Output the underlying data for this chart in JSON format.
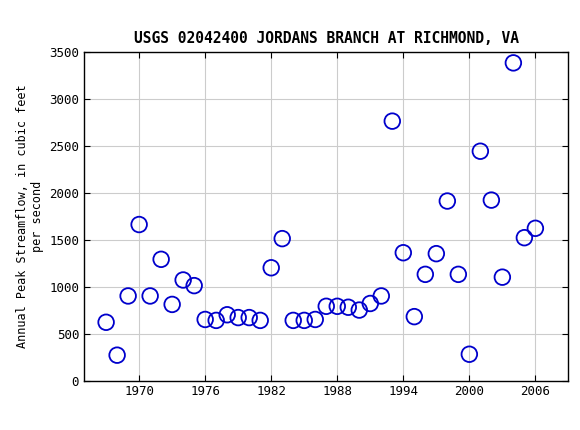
{
  "title": "USGS 02042400 JORDANS BRANCH AT RICHMOND, VA",
  "ylabel": "Annual Peak Streamflow, in cubic feet\nper second",
  "years": [
    1967,
    1968,
    1969,
    1970,
    1971,
    1972,
    1973,
    1974,
    1975,
    1976,
    1977,
    1978,
    1979,
    1980,
    1981,
    1982,
    1983,
    1984,
    1985,
    1986,
    1987,
    1988,
    1989,
    1990,
    1991,
    1992,
    1993,
    1994,
    1995,
    1996,
    1997,
    1998,
    1999,
    2000,
    2001,
    2002,
    2003,
    2004,
    2005,
    2006
  ],
  "values": [
    620,
    270,
    900,
    1660,
    900,
    1290,
    810,
    1070,
    1010,
    650,
    640,
    700,
    670,
    670,
    640,
    1200,
    1510,
    640,
    640,
    650,
    790,
    790,
    780,
    750,
    820,
    900,
    2760,
    1360,
    680,
    1130,
    1350,
    1910,
    1130,
    280,
    2440,
    1920,
    1100,
    3380,
    1520,
    1620
  ],
  "xlim": [
    1965,
    2009
  ],
  "ylim": [
    0,
    3500
  ],
  "yticks": [
    0,
    500,
    1000,
    1500,
    2000,
    2500,
    3000,
    3500
  ],
  "xticks": [
    1970,
    1976,
    1982,
    1988,
    1994,
    2000,
    2006
  ],
  "marker_color": "#0000cc",
  "marker_size": 6,
  "grid_color": "#cccccc",
  "header_color": "#1a6b3c",
  "bg_color": "#ffffff",
  "title_fontsize": 10.5,
  "tick_fontsize": 9,
  "ylabel_fontsize": 8.5
}
